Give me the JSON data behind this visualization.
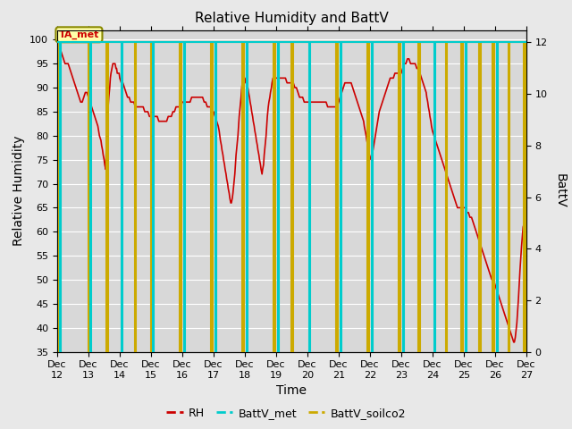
{
  "title": "Relative Humidity and BattV",
  "xlabel": "Time",
  "ylabel_left": "Relative Humidity",
  "ylabel_right": "BattV",
  "ylim_left": [
    35,
    102
  ],
  "ylim_right": [
    0,
    12.48
  ],
  "yticks_left": [
    35,
    40,
    45,
    50,
    55,
    60,
    65,
    70,
    75,
    80,
    85,
    90,
    95,
    100
  ],
  "yticks_right": [
    0,
    2,
    4,
    6,
    8,
    10,
    12
  ],
  "fig_bg_color": "#e8e8e8",
  "plot_bg_color": "#d8d8d8",
  "rh_color": "#cc0000",
  "battv_met_color": "#00cccc",
  "battv_soilco2_color": "#ccaa00",
  "annotation_text": "TA_met",
  "annotation_bg": "#ffffaa",
  "annotation_border": "#888800",
  "legend_rh_label": "RH",
  "legend_battv_met_label": "BattV_met",
  "legend_battv_soilco2_label": "BattV_soilco2",
  "rh_data": [
    [
      12.0,
      100
    ],
    [
      12.05,
      99
    ],
    [
      12.1,
      98
    ],
    [
      12.15,
      97
    ],
    [
      12.2,
      96
    ],
    [
      12.25,
      95
    ],
    [
      12.3,
      95
    ],
    [
      12.35,
      95
    ],
    [
      12.4,
      94
    ],
    [
      12.45,
      93
    ],
    [
      12.5,
      92
    ],
    [
      12.55,
      91
    ],
    [
      12.6,
      90
    ],
    [
      12.65,
      89
    ],
    [
      12.7,
      88
    ],
    [
      12.75,
      87
    ],
    [
      12.8,
      87
    ],
    [
      12.85,
      88
    ],
    [
      12.9,
      89
    ],
    [
      12.95,
      89
    ],
    [
      13.0,
      88
    ],
    [
      13.05,
      87
    ],
    [
      13.1,
      86
    ],
    [
      13.15,
      85
    ],
    [
      13.2,
      84
    ],
    [
      13.25,
      83
    ],
    [
      13.3,
      82
    ],
    [
      13.35,
      80
    ],
    [
      13.4,
      79
    ],
    [
      13.42,
      78
    ],
    [
      13.45,
      77
    ],
    [
      13.47,
      76
    ],
    [
      13.5,
      75
    ],
    [
      13.52,
      74
    ],
    [
      13.55,
      73
    ],
    [
      13.58,
      80
    ],
    [
      13.62,
      85
    ],
    [
      13.65,
      88
    ],
    [
      13.68,
      90
    ],
    [
      13.7,
      92
    ],
    [
      13.72,
      93
    ],
    [
      13.75,
      94
    ],
    [
      13.78,
      95
    ],
    [
      13.8,
      95
    ],
    [
      13.83,
      95
    ],
    [
      13.85,
      95
    ],
    [
      13.88,
      94
    ],
    [
      13.9,
      94
    ],
    [
      13.92,
      93
    ],
    [
      13.95,
      93
    ],
    [
      13.98,
      93
    ],
    [
      14.0,
      92
    ],
    [
      14.05,
      91
    ],
    [
      14.1,
      91
    ],
    [
      14.15,
      90
    ],
    [
      14.2,
      89
    ],
    [
      14.25,
      88
    ],
    [
      14.3,
      88
    ],
    [
      14.35,
      87
    ],
    [
      14.4,
      87
    ],
    [
      14.45,
      87
    ],
    [
      14.5,
      86
    ],
    [
      14.55,
      86
    ],
    [
      14.6,
      86
    ],
    [
      14.65,
      86
    ],
    [
      14.7,
      86
    ],
    [
      14.75,
      86
    ],
    [
      14.8,
      85
    ],
    [
      14.85,
      85
    ],
    [
      14.9,
      85
    ],
    [
      14.95,
      84
    ],
    [
      15.0,
      84
    ],
    [
      15.05,
      84
    ],
    [
      15.1,
      84
    ],
    [
      15.15,
      84
    ],
    [
      15.2,
      84
    ],
    [
      15.25,
      83
    ],
    [
      15.3,
      83
    ],
    [
      15.35,
      83
    ],
    [
      15.4,
      83
    ],
    [
      15.45,
      83
    ],
    [
      15.5,
      83
    ],
    [
      15.55,
      84
    ],
    [
      15.6,
      84
    ],
    [
      15.65,
      84
    ],
    [
      15.7,
      85
    ],
    [
      15.75,
      85
    ],
    [
      15.8,
      86
    ],
    [
      15.85,
      86
    ],
    [
      15.9,
      86
    ],
    [
      15.95,
      86
    ],
    [
      16.0,
      87
    ],
    [
      16.05,
      87
    ],
    [
      16.1,
      87
    ],
    [
      16.15,
      87
    ],
    [
      16.2,
      87
    ],
    [
      16.25,
      87
    ],
    [
      16.3,
      88
    ],
    [
      16.35,
      88
    ],
    [
      16.4,
      88
    ],
    [
      16.45,
      88
    ],
    [
      16.5,
      88
    ],
    [
      16.55,
      88
    ],
    [
      16.6,
      88
    ],
    [
      16.65,
      88
    ],
    [
      16.7,
      87
    ],
    [
      16.75,
      87
    ],
    [
      16.8,
      86
    ],
    [
      16.85,
      86
    ],
    [
      16.9,
      86
    ],
    [
      16.95,
      85
    ],
    [
      17.0,
      85
    ],
    [
      17.05,
      84
    ],
    [
      17.1,
      83
    ],
    [
      17.15,
      82
    ],
    [
      17.18,
      81
    ],
    [
      17.2,
      80
    ],
    [
      17.22,
      79
    ],
    [
      17.25,
      78
    ],
    [
      17.27,
      77
    ],
    [
      17.3,
      76
    ],
    [
      17.32,
      75
    ],
    [
      17.35,
      74
    ],
    [
      17.37,
      73
    ],
    [
      17.4,
      72
    ],
    [
      17.42,
      71
    ],
    [
      17.45,
      70
    ],
    [
      17.47,
      69
    ],
    [
      17.5,
      68
    ],
    [
      17.52,
      67
    ],
    [
      17.55,
      66
    ],
    [
      17.57,
      66
    ],
    [
      17.6,
      67
    ],
    [
      17.62,
      68
    ],
    [
      17.65,
      70
    ],
    [
      17.68,
      72
    ],
    [
      17.7,
      74
    ],
    [
      17.72,
      76
    ],
    [
      17.75,
      78
    ],
    [
      17.78,
      80
    ],
    [
      17.8,
      82
    ],
    [
      17.82,
      84
    ],
    [
      17.85,
      86
    ],
    [
      17.88,
      88
    ],
    [
      17.9,
      90
    ],
    [
      17.92,
      91
    ],
    [
      17.95,
      92
    ],
    [
      17.97,
      92
    ],
    [
      18.0,
      92
    ],
    [
      18.03,
      91
    ],
    [
      18.05,
      91
    ],
    [
      18.08,
      90
    ],
    [
      18.1,
      90
    ],
    [
      18.12,
      89
    ],
    [
      18.15,
      88
    ],
    [
      18.17,
      87
    ],
    [
      18.2,
      86
    ],
    [
      18.22,
      85
    ],
    [
      18.25,
      84
    ],
    [
      18.27,
      83
    ],
    [
      18.3,
      82
    ],
    [
      18.32,
      81
    ],
    [
      18.35,
      80
    ],
    [
      18.37,
      79
    ],
    [
      18.4,
      78
    ],
    [
      18.42,
      77
    ],
    [
      18.45,
      76
    ],
    [
      18.47,
      75
    ],
    [
      18.5,
      74
    ],
    [
      18.52,
      73
    ],
    [
      18.55,
      72
    ],
    [
      18.57,
      73
    ],
    [
      18.6,
      74
    ],
    [
      18.62,
      76
    ],
    [
      18.65,
      78
    ],
    [
      18.68,
      80
    ],
    [
      18.7,
      82
    ],
    [
      18.72,
      84
    ],
    [
      18.75,
      86
    ],
    [
      18.77,
      87
    ],
    [
      18.8,
      88
    ],
    [
      18.82,
      89
    ],
    [
      18.85,
      90
    ],
    [
      18.87,
      91
    ],
    [
      18.9,
      92
    ],
    [
      18.92,
      92
    ],
    [
      18.95,
      92
    ],
    [
      18.98,
      92
    ],
    [
      19.0,
      92
    ],
    [
      19.05,
      92
    ],
    [
      19.1,
      92
    ],
    [
      19.15,
      92
    ],
    [
      19.2,
      92
    ],
    [
      19.25,
      92
    ],
    [
      19.3,
      92
    ],
    [
      19.35,
      91
    ],
    [
      19.4,
      91
    ],
    [
      19.45,
      91
    ],
    [
      19.5,
      91
    ],
    [
      19.55,
      91
    ],
    [
      19.6,
      90
    ],
    [
      19.65,
      90
    ],
    [
      19.7,
      89
    ],
    [
      19.75,
      88
    ],
    [
      19.8,
      88
    ],
    [
      19.85,
      88
    ],
    [
      19.9,
      87
    ],
    [
      19.95,
      87
    ],
    [
      20.0,
      87
    ],
    [
      20.05,
      87
    ],
    [
      20.1,
      87
    ],
    [
      20.15,
      87
    ],
    [
      20.2,
      87
    ],
    [
      20.25,
      87
    ],
    [
      20.3,
      87
    ],
    [
      20.35,
      87
    ],
    [
      20.4,
      87
    ],
    [
      20.45,
      87
    ],
    [
      20.5,
      87
    ],
    [
      20.55,
      87
    ],
    [
      20.6,
      87
    ],
    [
      20.65,
      86
    ],
    [
      20.7,
      86
    ],
    [
      20.75,
      86
    ],
    [
      20.8,
      86
    ],
    [
      20.85,
      86
    ],
    [
      20.9,
      86
    ],
    [
      20.95,
      86
    ],
    [
      21.0,
      87
    ],
    [
      21.05,
      88
    ],
    [
      21.1,
      89
    ],
    [
      21.15,
      90
    ],
    [
      21.2,
      91
    ],
    [
      21.25,
      91
    ],
    [
      21.3,
      91
    ],
    [
      21.35,
      91
    ],
    [
      21.4,
      91
    ],
    [
      21.45,
      90
    ],
    [
      21.5,
      89
    ],
    [
      21.55,
      88
    ],
    [
      21.6,
      87
    ],
    [
      21.65,
      86
    ],
    [
      21.7,
      85
    ],
    [
      21.75,
      84
    ],
    [
      21.8,
      83
    ],
    [
      21.82,
      82
    ],
    [
      21.85,
      81
    ],
    [
      21.88,
      80
    ],
    [
      21.9,
      79
    ],
    [
      21.93,
      78
    ],
    [
      21.95,
      77
    ],
    [
      21.97,
      76
    ],
    [
      22.0,
      75
    ],
    [
      22.05,
      76
    ],
    [
      22.1,
      77
    ],
    [
      22.15,
      79
    ],
    [
      22.2,
      81
    ],
    [
      22.25,
      83
    ],
    [
      22.3,
      85
    ],
    [
      22.35,
      86
    ],
    [
      22.4,
      87
    ],
    [
      22.45,
      88
    ],
    [
      22.5,
      89
    ],
    [
      22.55,
      90
    ],
    [
      22.6,
      91
    ],
    [
      22.65,
      92
    ],
    [
      22.7,
      92
    ],
    [
      22.75,
      92
    ],
    [
      22.8,
      93
    ],
    [
      22.85,
      93
    ],
    [
      22.9,
      93
    ],
    [
      22.95,
      93
    ],
    [
      23.0,
      93
    ],
    [
      23.05,
      94
    ],
    [
      23.1,
      95
    ],
    [
      23.15,
      95
    ],
    [
      23.2,
      96
    ],
    [
      23.25,
      96
    ],
    [
      23.3,
      95
    ],
    [
      23.35,
      95
    ],
    [
      23.4,
      95
    ],
    [
      23.45,
      95
    ],
    [
      23.5,
      94
    ],
    [
      23.55,
      94
    ],
    [
      23.6,
      93
    ],
    [
      23.65,
      92
    ],
    [
      23.7,
      91
    ],
    [
      23.75,
      90
    ],
    [
      23.8,
      89
    ],
    [
      23.82,
      88
    ],
    [
      23.85,
      87
    ],
    [
      23.87,
      86
    ],
    [
      23.9,
      85
    ],
    [
      23.92,
      84
    ],
    [
      23.95,
      83
    ],
    [
      23.97,
      82
    ],
    [
      24.0,
      81
    ],
    [
      24.05,
      80
    ],
    [
      24.1,
      79
    ],
    [
      24.15,
      78
    ],
    [
      24.2,
      77
    ],
    [
      24.25,
      76
    ],
    [
      24.3,
      75
    ],
    [
      24.35,
      74
    ],
    [
      24.4,
      73
    ],
    [
      24.45,
      72
    ],
    [
      24.5,
      71
    ],
    [
      24.55,
      70
    ],
    [
      24.6,
      69
    ],
    [
      24.65,
      68
    ],
    [
      24.7,
      67
    ],
    [
      24.75,
      66
    ],
    [
      24.8,
      65
    ],
    [
      24.85,
      65
    ],
    [
      24.9,
      65
    ],
    [
      24.95,
      65
    ],
    [
      25.0,
      65
    ],
    [
      25.05,
      65
    ],
    [
      25.1,
      64
    ],
    [
      25.15,
      64
    ],
    [
      25.2,
      63
    ],
    [
      25.25,
      63
    ],
    [
      25.3,
      62
    ],
    [
      25.35,
      61
    ],
    [
      25.4,
      60
    ],
    [
      25.45,
      59
    ],
    [
      25.5,
      58
    ],
    [
      25.55,
      57
    ],
    [
      25.6,
      56
    ],
    [
      25.65,
      55
    ],
    [
      25.7,
      54
    ],
    [
      25.75,
      53
    ],
    [
      25.8,
      52
    ],
    [
      25.85,
      51
    ],
    [
      25.9,
      50
    ],
    [
      25.95,
      50
    ],
    [
      26.0,
      49
    ],
    [
      26.05,
      48
    ],
    [
      26.1,
      47
    ],
    [
      26.15,
      46
    ],
    [
      26.2,
      45
    ],
    [
      26.25,
      44
    ],
    [
      26.3,
      43
    ],
    [
      26.35,
      42
    ],
    [
      26.4,
      41
    ],
    [
      26.45,
      40
    ],
    [
      26.5,
      39
    ],
    [
      26.55,
      38
    ],
    [
      26.6,
      37
    ],
    [
      26.62,
      37
    ],
    [
      26.65,
      38
    ],
    [
      26.7,
      41
    ],
    [
      26.75,
      46
    ],
    [
      26.8,
      52
    ],
    [
      26.85,
      57
    ],
    [
      26.9,
      61
    ],
    [
      26.95,
      62
    ],
    [
      27.0,
      62
    ]
  ],
  "battv_met_segments": [
    [
      [
        12.0,
        12
      ],
      [
        12.08,
        12
      ],
      [
        12.08,
        0
      ],
      [
        12.12,
        0
      ],
      [
        12.12,
        12
      ],
      [
        13.05,
        12
      ],
      [
        13.05,
        0
      ],
      [
        13.08,
        0
      ],
      [
        13.08,
        12
      ],
      [
        14.05,
        12
      ],
      [
        14.05,
        0
      ],
      [
        14.08,
        0
      ],
      [
        14.08,
        12
      ],
      [
        15.05,
        12
      ],
      [
        15.05,
        0
      ],
      [
        15.08,
        0
      ],
      [
        15.08,
        12
      ],
      [
        16.05,
        12
      ],
      [
        16.05,
        0
      ],
      [
        16.08,
        0
      ],
      [
        16.08,
        12
      ],
      [
        17.05,
        12
      ],
      [
        17.05,
        0
      ],
      [
        17.08,
        0
      ],
      [
        17.08,
        12
      ],
      [
        18.05,
        12
      ],
      [
        18.05,
        0
      ],
      [
        18.08,
        0
      ],
      [
        18.08,
        12
      ],
      [
        19.05,
        12
      ],
      [
        19.05,
        0
      ],
      [
        19.08,
        0
      ],
      [
        19.08,
        12
      ],
      [
        20.05,
        12
      ],
      [
        20.05,
        0
      ],
      [
        20.08,
        0
      ],
      [
        20.08,
        12
      ],
      [
        21.05,
        12
      ],
      [
        21.05,
        0
      ],
      [
        21.08,
        0
      ],
      [
        21.08,
        12
      ],
      [
        22.05,
        12
      ],
      [
        22.05,
        0
      ],
      [
        22.08,
        0
      ],
      [
        22.08,
        12
      ],
      [
        23.05,
        12
      ],
      [
        23.05,
        0
      ],
      [
        23.08,
        0
      ],
      [
        23.08,
        12
      ],
      [
        24.05,
        12
      ],
      [
        24.05,
        0
      ],
      [
        24.08,
        0
      ],
      [
        24.08,
        12
      ],
      [
        25.05,
        12
      ],
      [
        25.05,
        0
      ],
      [
        25.08,
        0
      ],
      [
        25.08,
        12
      ],
      [
        26.05,
        12
      ],
      [
        26.05,
        0
      ],
      [
        26.08,
        0
      ],
      [
        26.08,
        12
      ],
      [
        27.0,
        12
      ]
    ]
  ],
  "battv_soilco2_segments": [
    [
      [
        12.0,
        12
      ],
      [
        12.05,
        12
      ],
      [
        12.05,
        0
      ],
      [
        12.08,
        0
      ],
      [
        12.08,
        12
      ],
      [
        13.0,
        12
      ],
      [
        13.0,
        0
      ],
      [
        13.05,
        0
      ],
      [
        13.05,
        12
      ],
      [
        13.58,
        12
      ],
      [
        13.58,
        0
      ],
      [
        13.62,
        0
      ],
      [
        13.62,
        12
      ],
      [
        14.48,
        12
      ],
      [
        14.48,
        0
      ],
      [
        14.52,
        0
      ],
      [
        14.52,
        12
      ],
      [
        15.0,
        12
      ],
      [
        15.0,
        0
      ],
      [
        15.05,
        0
      ],
      [
        15.05,
        12
      ],
      [
        15.92,
        12
      ],
      [
        15.92,
        0
      ],
      [
        15.97,
        0
      ],
      [
        15.97,
        12
      ],
      [
        16.92,
        12
      ],
      [
        16.92,
        0
      ],
      [
        16.97,
        0
      ],
      [
        16.97,
        12
      ],
      [
        17.92,
        12
      ],
      [
        17.92,
        0
      ],
      [
        17.97,
        0
      ],
      [
        17.97,
        12
      ],
      [
        18.92,
        12
      ],
      [
        18.92,
        0
      ],
      [
        18.97,
        0
      ],
      [
        18.97,
        12
      ],
      [
        19.5,
        12
      ],
      [
        19.5,
        0
      ],
      [
        19.55,
        0
      ],
      [
        19.55,
        12
      ],
      [
        20.92,
        12
      ],
      [
        20.92,
        0
      ],
      [
        20.97,
        0
      ],
      [
        20.97,
        12
      ],
      [
        21.92,
        12
      ],
      [
        21.92,
        0
      ],
      [
        21.97,
        0
      ],
      [
        21.97,
        12
      ],
      [
        22.92,
        12
      ],
      [
        22.92,
        0
      ],
      [
        22.97,
        0
      ],
      [
        22.97,
        12
      ],
      [
        23.55,
        12
      ],
      [
        23.55,
        0
      ],
      [
        23.6,
        0
      ],
      [
        23.6,
        12
      ],
      [
        24.42,
        12
      ],
      [
        24.42,
        0
      ],
      [
        24.47,
        0
      ],
      [
        24.47,
        12
      ],
      [
        24.92,
        12
      ],
      [
        24.92,
        0
      ],
      [
        24.97,
        0
      ],
      [
        24.97,
        12
      ],
      [
        25.5,
        12
      ],
      [
        25.5,
        0
      ],
      [
        25.55,
        0
      ],
      [
        25.55,
        12
      ],
      [
        25.92,
        12
      ],
      [
        25.92,
        0
      ],
      [
        25.97,
        0
      ],
      [
        25.97,
        12
      ],
      [
        26.42,
        12
      ],
      [
        26.42,
        0
      ],
      [
        26.47,
        0
      ],
      [
        26.47,
        12
      ],
      [
        26.92,
        12
      ],
      [
        26.92,
        0
      ],
      [
        26.97,
        0
      ],
      [
        26.97,
        12
      ],
      [
        27.0,
        12
      ]
    ]
  ],
  "xtick_positions": [
    12,
    13,
    14,
    15,
    16,
    17,
    18,
    19,
    20,
    21,
    22,
    23,
    24,
    25,
    26,
    27
  ],
  "xtick_labels": [
    "Dec 12",
    "Dec 13",
    "Dec 14",
    "Dec 15",
    "Dec 16",
    "Dec 17",
    "Dec 18",
    "Dec 19",
    "Dec 20",
    "Dec 21",
    "Dec 22",
    "Dec 23",
    "Dec 24",
    "Dec 25",
    "Dec 26",
    "Dec 27"
  ]
}
